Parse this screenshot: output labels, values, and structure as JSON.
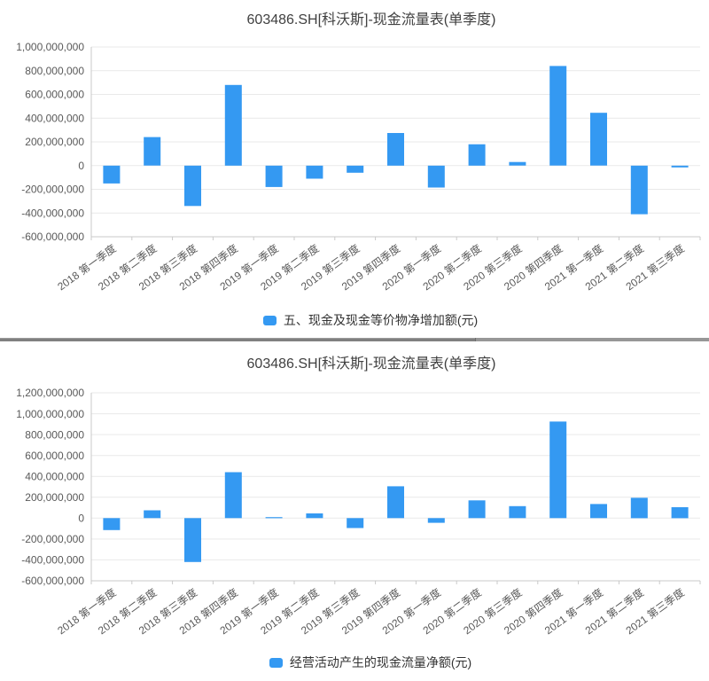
{
  "chart_data": [
    {
      "type": "bar",
      "title": "603486.SH[科沃斯]-现金流量表(单季度)",
      "legend": "五、现金及现金等价物净增加额(元)",
      "legend_position": "bottom",
      "grid": true,
      "xlabel": "",
      "ylabel": "",
      "ylim": [
        -600000000,
        1000000000
      ],
      "ytick_interval": 200000000,
      "bar_color": "#3499f2",
      "categories": [
        "2018 第一季度",
        "2018 第二季度",
        "2018 第三季度",
        "2018 第四季度",
        "2019 第一季度",
        "2019 第二季度",
        "2019 第三季度",
        "2019 第四季度",
        "2020 第一季度",
        "2020 第二季度",
        "2020 第三季度",
        "2020 第四季度",
        "2021 第一季度",
        "2021 第二季度",
        "2021 第三季度"
      ],
      "values": [
        -150000000,
        240000000,
        -340000000,
        680000000,
        -180000000,
        -110000000,
        -60000000,
        275000000,
        -185000000,
        180000000,
        30000000,
        840000000,
        445000000,
        -410000000,
        -15000000
      ]
    },
    {
      "type": "bar",
      "title": "603486.SH[科沃斯]-现金流量表(单季度)",
      "legend": "经营活动产生的现金流量净额(元)",
      "legend_position": "bottom",
      "grid": true,
      "xlabel": "",
      "ylabel": "",
      "ylim": [
        -600000000,
        1200000000
      ],
      "ytick_interval": 200000000,
      "bar_color": "#3499f2",
      "categories": [
        "2018 第一季度",
        "2018 第二季度",
        "2018 第三季度",
        "2018 第四季度",
        "2019 第一季度",
        "2019 第二季度",
        "2019 第三季度",
        "2019 第四季度",
        "2020 第一季度",
        "2020 第二季度",
        "2020 第三季度",
        "2020 第四季度",
        "2021 第一季度",
        "2021 第二季度",
        "2021 第三季度"
      ],
      "values": [
        -115000000,
        75000000,
        -420000000,
        440000000,
        10000000,
        45000000,
        -95000000,
        305000000,
        -45000000,
        170000000,
        115000000,
        925000000,
        135000000,
        195000000,
        105000000
      ]
    }
  ]
}
